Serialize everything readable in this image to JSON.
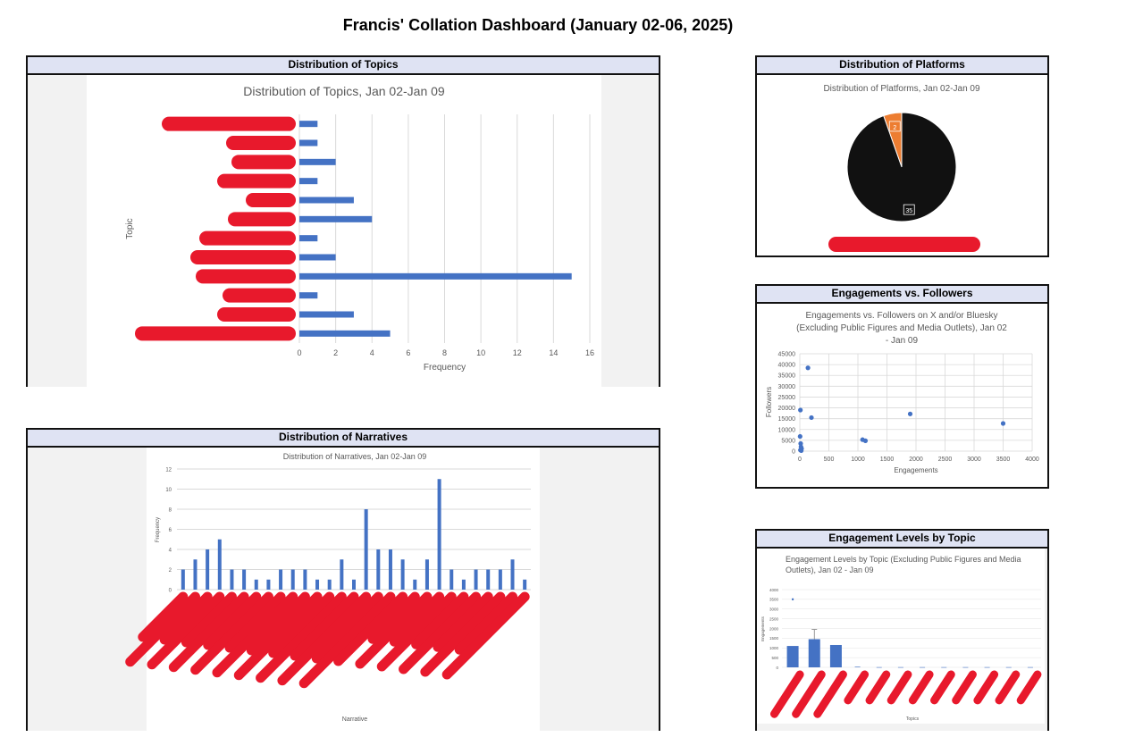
{
  "dashboard_title": "Francis' Collation Dashboard (January 02-06, 2025)",
  "colors": {
    "bar": "#4472c4",
    "pie_main": "#111111",
    "pie_accent": "#ed7d31",
    "redaction": "#e8192c",
    "header_bg": "#dfe3f3"
  },
  "panels": {
    "topics": {
      "header": "Distribution of Topics"
    },
    "narratives": {
      "header": "Distribution of Narratives"
    },
    "platforms": {
      "header": "Distribution of Platforms"
    },
    "engagements": {
      "header": "Engagements vs. Followers"
    },
    "levels": {
      "header": "Engagement Levels by Topic"
    }
  },
  "chart_data": [
    {
      "id": "topics",
      "type": "bar",
      "orientation": "horizontal",
      "title": "Distribution of Topics, Jan 02-Jan 09",
      "xlabel": "Frequency",
      "ylabel": "Topic",
      "xlim": [
        0,
        16
      ],
      "xticks": [
        0,
        2,
        4,
        6,
        8,
        10,
        12,
        14,
        16
      ],
      "grid": true,
      "category_labels_redacted": true,
      "values": [
        1,
        1,
        2,
        1,
        3,
        4,
        1,
        2,
        15,
        1,
        3,
        5
      ]
    },
    {
      "id": "narratives",
      "type": "bar",
      "title": "Distribution of Narratives, Jan 02-Jan 09",
      "xlabel": "Narrative",
      "ylabel": "Frequency",
      "ylim": [
        0,
        12
      ],
      "yticks": [
        0,
        2,
        4,
        6,
        8,
        10,
        12
      ],
      "grid": true,
      "category_labels_redacted": true,
      "values": [
        2,
        3,
        4,
        5,
        2,
        2,
        1,
        1,
        2,
        2,
        2,
        1,
        1,
        3,
        1,
        8,
        4,
        4,
        3,
        1,
        3,
        11,
        2,
        1,
        2,
        2,
        2,
        3,
        1
      ]
    },
    {
      "id": "platforms",
      "type": "pie",
      "title": "Distribution of Platforms, Jan 02-Jan 09",
      "values": [
        35,
        2
      ],
      "data_labels": [
        "35",
        "2"
      ],
      "legend_redacted": true
    },
    {
      "id": "engagements",
      "type": "scatter",
      "title": "Engagements vs. Followers on X and/or Bluesky (Excluding Public Figures and Media Outlets), Jan 02 - Jan 09",
      "title_lines": [
        "Engagements vs. Followers on X and/or Bluesky",
        "(Excluding Public Figures and Media Outlets), Jan 02",
        "- Jan 09"
      ],
      "xlabel": "Engagements",
      "ylabel": "Followers",
      "xlim": [
        0,
        4000
      ],
      "ylim": [
        0,
        45000
      ],
      "xticks": [
        0,
        500,
        1000,
        1500,
        2000,
        2500,
        3000,
        3500,
        4000
      ],
      "yticks": [
        0,
        5000,
        10000,
        15000,
        20000,
        25000,
        30000,
        35000,
        40000,
        45000
      ],
      "grid": true,
      "points": [
        {
          "x": 140,
          "y": 38500
        },
        {
          "x": 10,
          "y": 19000
        },
        {
          "x": 200,
          "y": 15500
        },
        {
          "x": 1900,
          "y": 17200
        },
        {
          "x": 3500,
          "y": 12800
        },
        {
          "x": 1080,
          "y": 5300
        },
        {
          "x": 1130,
          "y": 4800
        },
        {
          "x": 5,
          "y": 6800
        },
        {
          "x": 15,
          "y": 3500
        },
        {
          "x": 20,
          "y": 2000
        },
        {
          "x": 30,
          "y": 1200
        },
        {
          "x": 10,
          "y": 500
        },
        {
          "x": 25,
          "y": 250
        }
      ]
    },
    {
      "id": "levels",
      "type": "bar",
      "title": "Engagement Levels by Topic (Excluding Public Figures and Media Outlets), Jan 02 - Jan 09",
      "title_lines": [
        "Engagement Levels by Topic (Excluding Public Figures and Media",
        "Outlets), Jan 02 - Jan 09"
      ],
      "xlabel": "Topics",
      "ylabel": "Engagements",
      "ylim": [
        0,
        4000
      ],
      "yticks": [
        0,
        500,
        1000,
        1500,
        2000,
        2500,
        3000,
        3500,
        4000
      ],
      "grid": true,
      "category_labels_redacted": true,
      "values": [
        1100,
        1450,
        1150,
        30,
        10,
        10,
        10,
        10,
        10,
        10,
        10,
        10
      ],
      "error_high": [
        0,
        1950,
        0,
        0,
        0,
        0,
        0,
        0,
        0,
        0,
        0,
        0
      ],
      "outliers": [
        {
          "index": 0,
          "value": 3500
        }
      ]
    }
  ]
}
